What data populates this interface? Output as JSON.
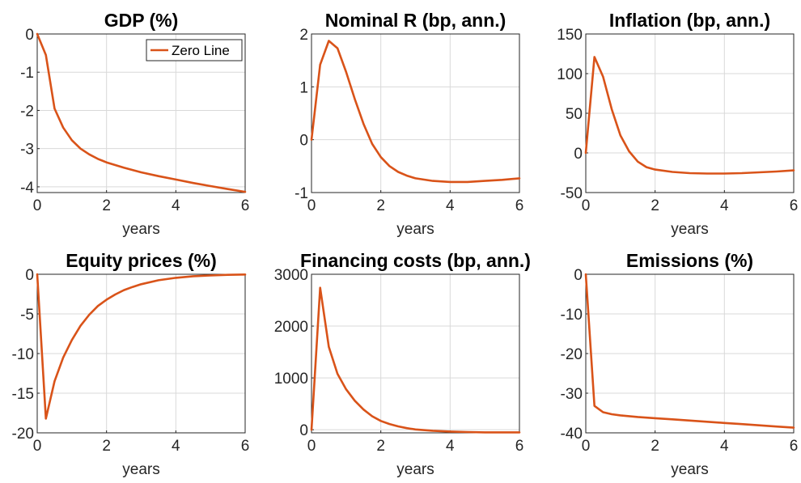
{
  "style": {
    "line_color": "#D95319",
    "grid_color": "#d9d9d9",
    "axis_color": "#262626",
    "zero_line_color": "#c8c8c8"
  },
  "chart_data": [
    {
      "type": "line",
      "title": "GDP (%)",
      "xlabel": "years",
      "ylabel": "",
      "xlim": [
        0,
        6
      ],
      "ylim": [
        -4.15,
        0
      ],
      "xticks": [
        0,
        2,
        4,
        6
      ],
      "yticks": [
        0,
        -1,
        -2,
        -3,
        -4
      ],
      "grid": true,
      "legend": {
        "placement": "top-right",
        "entries": [
          "Zero Line"
        ]
      },
      "series": [
        {
          "name": "Zero Line",
          "x": [
            0,
            0.25,
            0.5,
            0.75,
            1,
            1.25,
            1.5,
            1.75,
            2,
            2.5,
            3,
            3.5,
            4,
            4.5,
            5,
            5.5,
            6
          ],
          "y": [
            0,
            -0.55,
            -1.95,
            -2.45,
            -2.78,
            -3.0,
            -3.15,
            -3.27,
            -3.36,
            -3.5,
            -3.62,
            -3.72,
            -3.81,
            -3.9,
            -3.98,
            -4.06,
            -4.13
          ]
        }
      ]
    },
    {
      "type": "line",
      "title": "Nominal R (bp, ann.)",
      "xlabel": "years",
      "ylabel": "",
      "xlim": [
        0,
        6
      ],
      "ylim": [
        -1,
        2
      ],
      "xticks": [
        0,
        2,
        4,
        6
      ],
      "yticks": [
        2,
        1,
        0,
        -1
      ],
      "grid": true,
      "series": [
        {
          "x": [
            0,
            0.25,
            0.5,
            0.75,
            1,
            1.25,
            1.5,
            1.75,
            2,
            2.25,
            2.5,
            2.75,
            3,
            3.5,
            4,
            4.5,
            5,
            5.5,
            6
          ],
          "y": [
            0,
            1.42,
            1.87,
            1.73,
            1.28,
            0.77,
            0.3,
            -0.08,
            -0.33,
            -0.5,
            -0.61,
            -0.68,
            -0.73,
            -0.78,
            -0.8,
            -0.8,
            -0.78,
            -0.76,
            -0.73
          ]
        }
      ]
    },
    {
      "type": "line",
      "title": "Inflation (bp, ann.)",
      "xlabel": "years",
      "ylabel": "",
      "xlim": [
        0,
        6
      ],
      "ylim": [
        -50,
        150
      ],
      "xticks": [
        0,
        2,
        4,
        6
      ],
      "yticks": [
        150,
        100,
        50,
        0,
        -50
      ],
      "grid": true,
      "series": [
        {
          "x": [
            0,
            0.25,
            0.5,
            0.75,
            1,
            1.25,
            1.5,
            1.75,
            2,
            2.5,
            3,
            3.5,
            4,
            4.5,
            5,
            5.5,
            6
          ],
          "y": [
            0,
            121,
            96,
            55,
            22,
            2,
            -11,
            -18,
            -21,
            -24,
            -25.5,
            -26,
            -26,
            -25.5,
            -24.5,
            -23.5,
            -22
          ]
        }
      ]
    },
    {
      "type": "line",
      "title": "Equity prices (%)",
      "xlabel": "years",
      "ylabel": "",
      "xlim": [
        0,
        6
      ],
      "ylim": [
        -20,
        0
      ],
      "xticks": [
        0,
        2,
        4,
        6
      ],
      "yticks": [
        0,
        -5,
        -10,
        -15,
        -20
      ],
      "grid": true,
      "series": [
        {
          "x": [
            0,
            0.25,
            0.5,
            0.75,
            1,
            1.25,
            1.5,
            1.75,
            2,
            2.25,
            2.5,
            2.75,
            3,
            3.5,
            4,
            4.5,
            5,
            5.5,
            6
          ],
          "y": [
            0,
            -18.2,
            -13.5,
            -10.5,
            -8.3,
            -6.5,
            -5.1,
            -4.0,
            -3.2,
            -2.55,
            -2.0,
            -1.6,
            -1.25,
            -0.75,
            -0.45,
            -0.25,
            -0.15,
            -0.07,
            -0.03
          ]
        }
      ]
    },
    {
      "type": "line",
      "title": "Financing costs (bp, ann.)",
      "xlabel": "years",
      "ylabel": "",
      "xlim": [
        0,
        6
      ],
      "ylim": [
        -60,
        3000
      ],
      "xticks": [
        0,
        2,
        4,
        6
      ],
      "yticks": [
        3000,
        2000,
        1000,
        0
      ],
      "grid": true,
      "series": [
        {
          "x": [
            0,
            0.25,
            0.5,
            0.75,
            1,
            1.25,
            1.5,
            1.75,
            2,
            2.25,
            2.5,
            2.75,
            3,
            3.5,
            4,
            4.5,
            5,
            5.5,
            6
          ],
          "y": [
            0,
            2740,
            1600,
            1080,
            780,
            560,
            390,
            260,
            170,
            110,
            65,
            30,
            5,
            -20,
            -35,
            -45,
            -50,
            -50,
            -50
          ]
        }
      ]
    },
    {
      "type": "line",
      "title": "Emissions (%)",
      "xlabel": "years",
      "ylabel": "",
      "xlim": [
        0,
        6
      ],
      "ylim": [
        -40,
        0
      ],
      "xticks": [
        0,
        2,
        4,
        6
      ],
      "yticks": [
        0,
        -10,
        -20,
        -30,
        -40
      ],
      "grid": true,
      "series": [
        {
          "x": [
            0,
            0.25,
            0.5,
            0.75,
            1,
            1.5,
            2,
            2.5,
            3,
            3.5,
            4,
            4.5,
            5,
            5.5,
            6
          ],
          "y": [
            0,
            -33.2,
            -34.8,
            -35.3,
            -35.6,
            -36.0,
            -36.3,
            -36.6,
            -36.9,
            -37.2,
            -37.5,
            -37.8,
            -38.1,
            -38.4,
            -38.7
          ]
        }
      ]
    }
  ]
}
